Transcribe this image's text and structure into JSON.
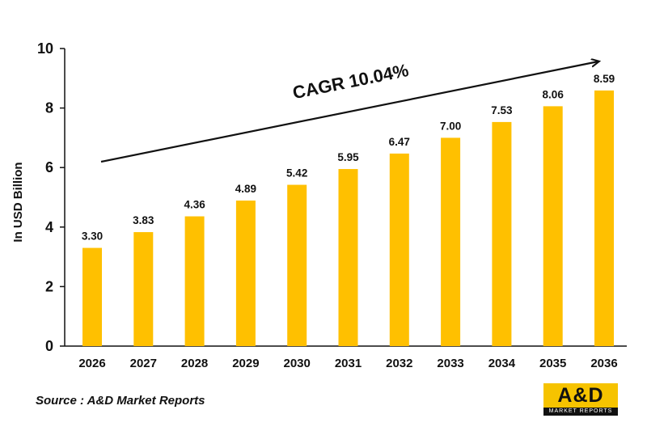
{
  "chart_data": {
    "type": "bar",
    "categories": [
      "2026",
      "2027",
      "2028",
      "2029",
      "2030",
      "2031",
      "2032",
      "2033",
      "2034",
      "2035",
      "2036"
    ],
    "values": [
      3.3,
      3.83,
      4.36,
      4.89,
      5.42,
      5.95,
      6.47,
      7.0,
      7.53,
      8.06,
      8.59
    ],
    "data_labels": [
      "3.30",
      "3.83",
      "4.36",
      "4.89",
      "5.42",
      "5.95",
      "6.47",
      "7.00",
      "7.53",
      "8.06",
      "8.59"
    ],
    "ylabel": "In USD Billion",
    "xlabel": "",
    "ylim": [
      0,
      10
    ],
    "yticks": [
      "0",
      "2",
      "4",
      "6",
      "8",
      "10"
    ],
    "bar_color": "#ffc000",
    "grid": false,
    "annotation": "CAGR 10.04%"
  },
  "source_text": "Source : A&D Market Reports",
  "logo": {
    "text": "A&D",
    "subtext": "MARKET REPORTS",
    "color": "#f6c300"
  }
}
